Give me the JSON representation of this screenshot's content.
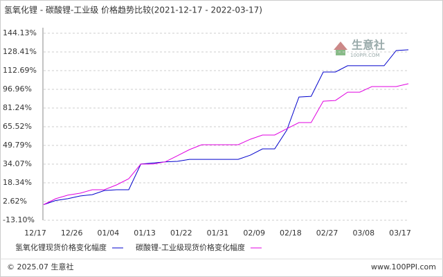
{
  "chart_data": {
    "type": "line",
    "title": "氢氧化锂 - 碳酸锂-工业级 价格趋势比较(2021-12-17 - 2022-03-17)",
    "categories": [
      "12/17",
      null,
      null,
      "12/26",
      null,
      null,
      "01/04",
      null,
      null,
      "01/13",
      null,
      null,
      "01/22",
      null,
      null,
      "01/31",
      null,
      null,
      "02/09",
      null,
      null,
      "02/18",
      null,
      null,
      "02/27",
      null,
      null,
      "03/08",
      null,
      null,
      "03/17"
    ],
    "series": [
      {
        "name": "氢氧化锂现货价格变化幅度",
        "color": "#0000cc",
        "values": [
          0,
          3.5,
          5,
          7.3,
          8.4,
          11.9,
          12.5,
          12.5,
          34.1,
          35,
          36,
          36.4,
          38.1,
          38.1,
          38.1,
          38.1,
          38.1,
          41.6,
          46.9,
          46.9,
          62.6,
          90.5,
          91.1,
          111.5,
          111.5,
          116.8,
          116.8,
          116.8,
          116.8,
          129.6,
          130.2
        ]
      },
      {
        "name": "碳酸锂-工业级现货价格变化幅度",
        "color": "#e000e0",
        "values": [
          0,
          5,
          8,
          9.6,
          12.5,
          12.5,
          16.6,
          21.8,
          34.1,
          34.1,
          36,
          41.1,
          46.3,
          50.4,
          50.4,
          50.4,
          50.4,
          55,
          58.5,
          58.5,
          63.8,
          69,
          69,
          87,
          87.6,
          94.6,
          94.6,
          99.3,
          99.3,
          99.3,
          101.7
        ]
      }
    ],
    "ylim": [
      -13.1,
      144.13
    ],
    "yticks": [
      {
        "value": 144.13,
        "label": "144.13%"
      },
      {
        "value": 128.41,
        "label": "128.41%"
      },
      {
        "value": 112.69,
        "label": "112.69%"
      },
      {
        "value": 96.96,
        "label": "96.96%"
      },
      {
        "value": 81.24,
        "label": "81.24%"
      },
      {
        "value": 65.52,
        "label": "65.52%"
      },
      {
        "value": 49.79,
        "label": "49.79%"
      },
      {
        "value": 34.07,
        "label": "34.07%"
      },
      {
        "value": 18.34,
        "label": "18.34%"
      },
      {
        "value": 2.62,
        "label": "2.62%"
      },
      {
        "value": -13.1,
        "label": "-13.10%"
      }
    ],
    "grid": true,
    "watermark": "生意社",
    "watermark_sub": "100PPI.COM",
    "footer_left": "© 2025.07 生意社",
    "footer_right": "www.100PPI.com"
  }
}
